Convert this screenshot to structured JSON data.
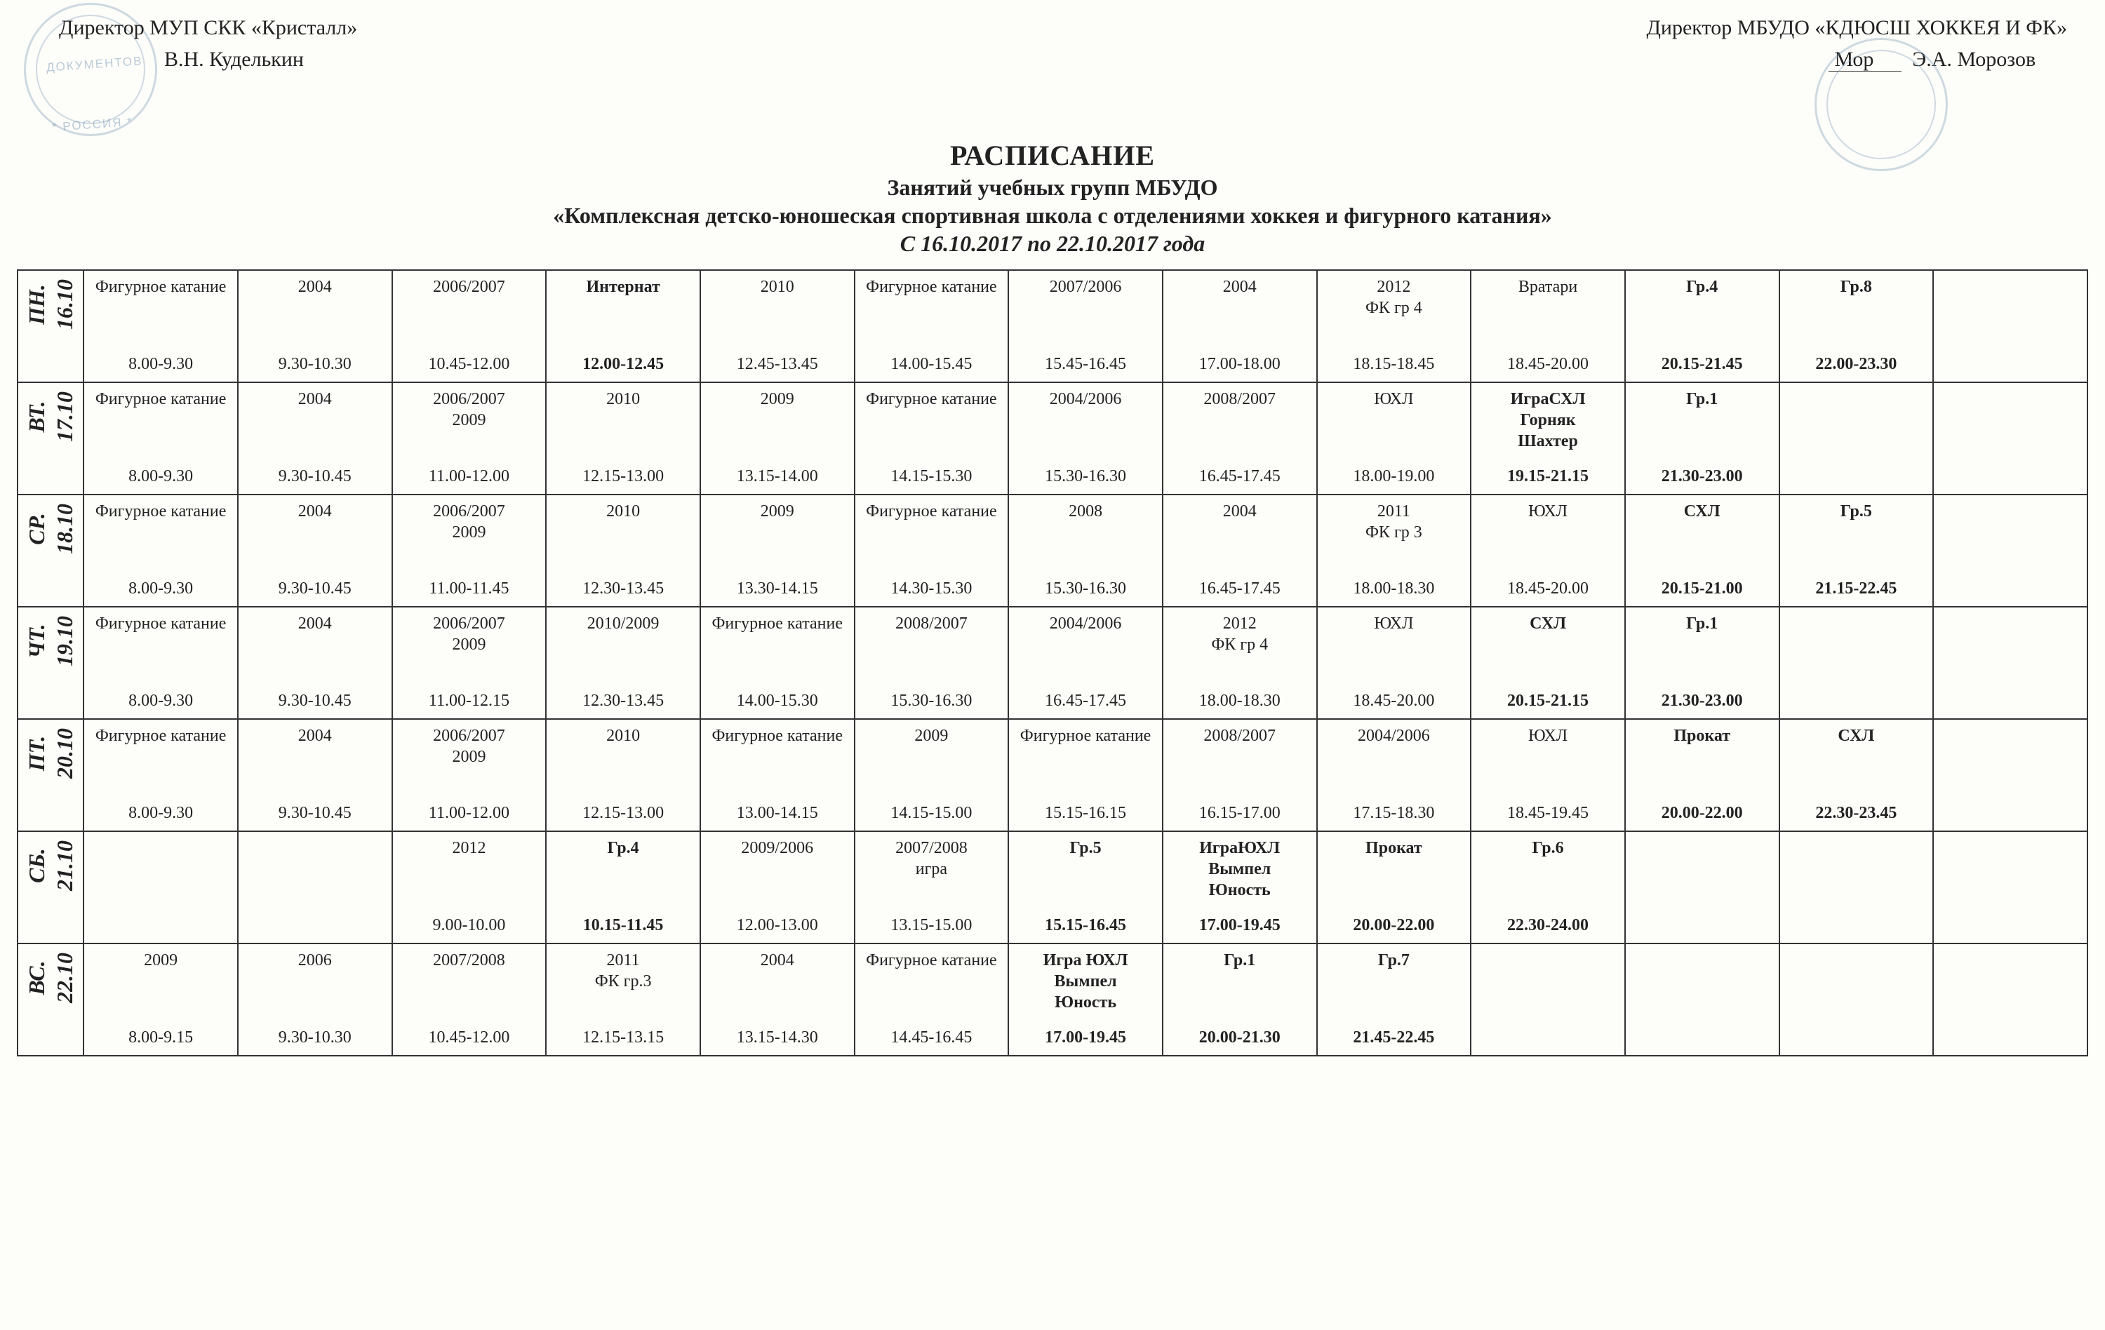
{
  "header": {
    "left": {
      "line1": "Директор МУП СКК «Кристалл»",
      "line2": "В.Н. Куделькин"
    },
    "right": {
      "line1": "Директор МБУДО «КДЮСШ ХОККЕЯ И ФК»",
      "line2": "Э.А. Морозов"
    },
    "stamp_left_1": "ДОКУМЕНТОВ",
    "stamp_left_2": "* РОССИЯ *"
  },
  "title": {
    "t1": "РАСПИСАНИЕ",
    "t2": "Занятий учебных групп МБУДО",
    "t3": "«Комплексная детско-юношеская спортивная школа с отделениями хоккея и фигурного катания»",
    "t4": "С 16.10.2017 по 22.10.2017 года"
  },
  "colors": {
    "border": "#333333",
    "bg": "#fdfdfa",
    "text": "#222222",
    "stamp": "#7a99b5"
  },
  "days": [
    {
      "day": "ПН.",
      "date": "16.10",
      "slots": [
        {
          "label": "Фигурное катание",
          "time": "8.00-9.30"
        },
        {
          "label": "2004",
          "time": "9.30-10.30"
        },
        {
          "label": "2006/2007",
          "time": "10.45-12.00"
        },
        {
          "label": "Интернат",
          "time": "12.00-12.45",
          "bold": true
        },
        {
          "label": "2010",
          "time": "12.45-13.45"
        },
        {
          "label": "Фигурное катание",
          "time": "14.00-15.45"
        },
        {
          "label": "2007/2006",
          "time": "15.45-16.45"
        },
        {
          "label": "2004",
          "time": "17.00-18.00"
        },
        {
          "label": "2012\nФК гр 4",
          "time": "18.15-18.45"
        },
        {
          "label": "Вратари",
          "time": "18.45-20.00"
        },
        {
          "label": "Гр.4",
          "time": "20.15-21.45",
          "bold": true
        },
        {
          "label": "Гр.8",
          "time": "22.00-23.30",
          "bold": true
        },
        null
      ]
    },
    {
      "day": "ВТ.",
      "date": "17.10",
      "slots": [
        {
          "label": "Фигурное катание",
          "time": "8.00-9.30"
        },
        {
          "label": "2004",
          "time": "9.30-10.45"
        },
        {
          "label": "2006/2007\n2009",
          "time": "11.00-12.00"
        },
        {
          "label": "2010",
          "time": "12.15-13.00"
        },
        {
          "label": "2009",
          "time": "13.15-14.00"
        },
        {
          "label": "Фигурное катание",
          "time": "14.15-15.30"
        },
        {
          "label": "2004/2006",
          "time": "15.30-16.30"
        },
        {
          "label": "2008/2007",
          "time": "16.45-17.45"
        },
        {
          "label": "ЮХЛ",
          "time": "18.00-19.00"
        },
        {
          "label": "ИграСХЛ\nГорняк\nШахтер",
          "time": "19.15-21.15",
          "bold": true
        },
        {
          "label": "Гр.1",
          "time": "21.30-23.00",
          "bold": true
        },
        null,
        null
      ]
    },
    {
      "day": "СР.",
      "date": "18.10",
      "slots": [
        {
          "label": "Фигурное катание",
          "time": "8.00-9.30"
        },
        {
          "label": "2004",
          "time": "9.30-10.45"
        },
        {
          "label": "2006/2007\n2009",
          "time": "11.00-11.45"
        },
        {
          "label": "2010",
          "time": "12.30-13.45"
        },
        {
          "label": "2009",
          "time": "13.30-14.15"
        },
        {
          "label": "Фигурное катание",
          "time": "14.30-15.30"
        },
        {
          "label": "2008",
          "time": "15.30-16.30"
        },
        {
          "label": "2004",
          "time": "16.45-17.45"
        },
        {
          "label": "2011\nФК гр 3",
          "time": "18.00-18.30"
        },
        {
          "label": "ЮХЛ",
          "time": "18.45-20.00"
        },
        {
          "label": "СХЛ",
          "time": "20.15-21.00",
          "bold": true
        },
        {
          "label": "Гр.5",
          "time": "21.15-22.45",
          "bold": true
        },
        null
      ]
    },
    {
      "day": "ЧТ.",
      "date": "19.10",
      "slots": [
        {
          "label": "Фигурное катание",
          "time": "8.00-9.30"
        },
        {
          "label": "2004",
          "time": "9.30-10.45"
        },
        {
          "label": "2006/2007\n2009",
          "time": "11.00-12.15"
        },
        {
          "label": "2010/2009",
          "time": "12.30-13.45"
        },
        {
          "label": "Фигурное катание",
          "time": "14.00-15.30"
        },
        {
          "label": "2008/2007",
          "time": "15.30-16.30"
        },
        {
          "label": "2004/2006",
          "time": "16.45-17.45"
        },
        {
          "label": "2012\nФК гр 4",
          "time": "18.00-18.30"
        },
        {
          "label": "ЮХЛ",
          "time": "18.45-20.00"
        },
        {
          "label": "СХЛ",
          "time": "20.15-21.15",
          "bold": true
        },
        {
          "label": "Гр.1",
          "time": "21.30-23.00",
          "bold": true
        },
        null,
        null
      ]
    },
    {
      "day": "ПТ.",
      "date": "20.10",
      "slots": [
        {
          "label": "Фигурное катание",
          "time": "8.00-9.30"
        },
        {
          "label": "2004",
          "time": "9.30-10.45"
        },
        {
          "label": "2006/2007\n2009",
          "time": "11.00-12.00"
        },
        {
          "label": "2010",
          "time": "12.15-13.00"
        },
        {
          "label": "Фигурное катание",
          "time": "13.00-14.15"
        },
        {
          "label": "2009",
          "time": "14.15-15.00"
        },
        {
          "label": "Фигурное катание",
          "time": "15.15-16.15"
        },
        {
          "label": "2008/2007",
          "time": "16.15-17.00"
        },
        {
          "label": "2004/2006",
          "time": "17.15-18.30"
        },
        {
          "label": "ЮХЛ",
          "time": "18.45-19.45"
        },
        {
          "label": "Прокат",
          "time": "20.00-22.00",
          "bold": true
        },
        {
          "label": "СХЛ",
          "time": "22.30-23.45",
          "bold": true
        },
        null
      ]
    },
    {
      "day": "СБ.",
      "date": "21.10",
      "slots": [
        null,
        null,
        {
          "label": "2012",
          "time": "9.00-10.00"
        },
        {
          "label": "Гр.4",
          "time": "10.15-11.45",
          "bold": true
        },
        {
          "label": "2009/2006",
          "time": "12.00-13.00"
        },
        {
          "label": "2007/2008\nигра",
          "time": "13.15-15.00"
        },
        {
          "label": "Гр.5",
          "time": "15.15-16.45",
          "bold": true
        },
        {
          "label": "ИграЮХЛ\nВымпел\nЮность",
          "time": "17.00-19.45",
          "bold": true
        },
        {
          "label": "Прокат",
          "time": "20.00-22.00",
          "bold": true
        },
        {
          "label": "Гр.6",
          "time": "22.30-24.00",
          "bold": true
        },
        null,
        null,
        null
      ]
    },
    {
      "day": "ВС.",
      "date": "22.10",
      "slots": [
        {
          "label": "2009",
          "time": "8.00-9.15"
        },
        {
          "label": "2006",
          "time": "9.30-10.30"
        },
        {
          "label": "2007/2008",
          "time": "10.45-12.00"
        },
        {
          "label": "2011\nФК гр.3",
          "time": "12.15-13.15"
        },
        {
          "label": "2004",
          "time": "13.15-14.30"
        },
        {
          "label": "Фигурное катание",
          "time": "14.45-16.45"
        },
        {
          "label": "Игра ЮХЛ\nВымпел\nЮность",
          "time": "17.00-19.45",
          "bold": true
        },
        {
          "label": "Гр.1",
          "time": "20.00-21.30",
          "bold": true
        },
        {
          "label": "Гр.7",
          "time": "21.45-22.45",
          "bold": true
        },
        null,
        null,
        null,
        null
      ]
    }
  ]
}
